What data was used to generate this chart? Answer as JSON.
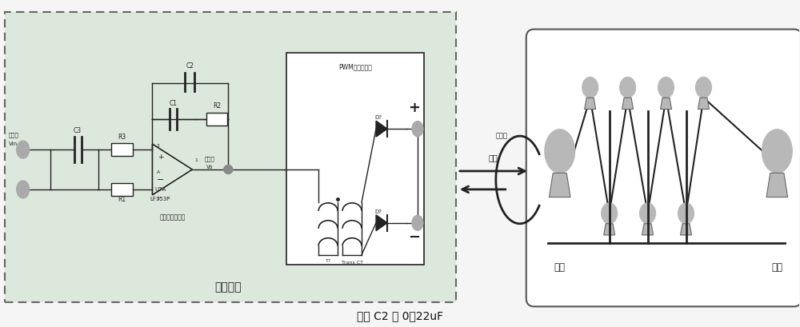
{
  "caption": "其中 C2 为 0．22uF",
  "bg_color": "#f5f5f5",
  "left_box_label": "直流电源",
  "pwm_label": "PWM开关整流器",
  "opamp_label1": "U7A",
  "opamp_label2": "LF353P",
  "opamp_desc": "三型误差放大器",
  "trans_label": "Trans CT",
  "d1_label": "D?",
  "d2_label": "D?",
  "t_label": "T?",
  "c1_label": "C1",
  "c2_label": "C2",
  "c3_label": "C3",
  "r1_label": "R1",
  "r2_label": "R2",
  "r3_label": "R3",
  "input_label1": "连接器",
  "input_label2": "Vin",
  "control_label1": "控制量",
  "control_label2": "Vo",
  "arrow_label1": "电流",
  "arrow_label2": "集电环",
  "roll_out_label": "卷出",
  "roll_in_label": "卷取",
  "roller_color": "#b8b8b8",
  "line_color": "#222222",
  "left_box_bg": "#dde8dd",
  "right_box_bg": "#ffffff"
}
